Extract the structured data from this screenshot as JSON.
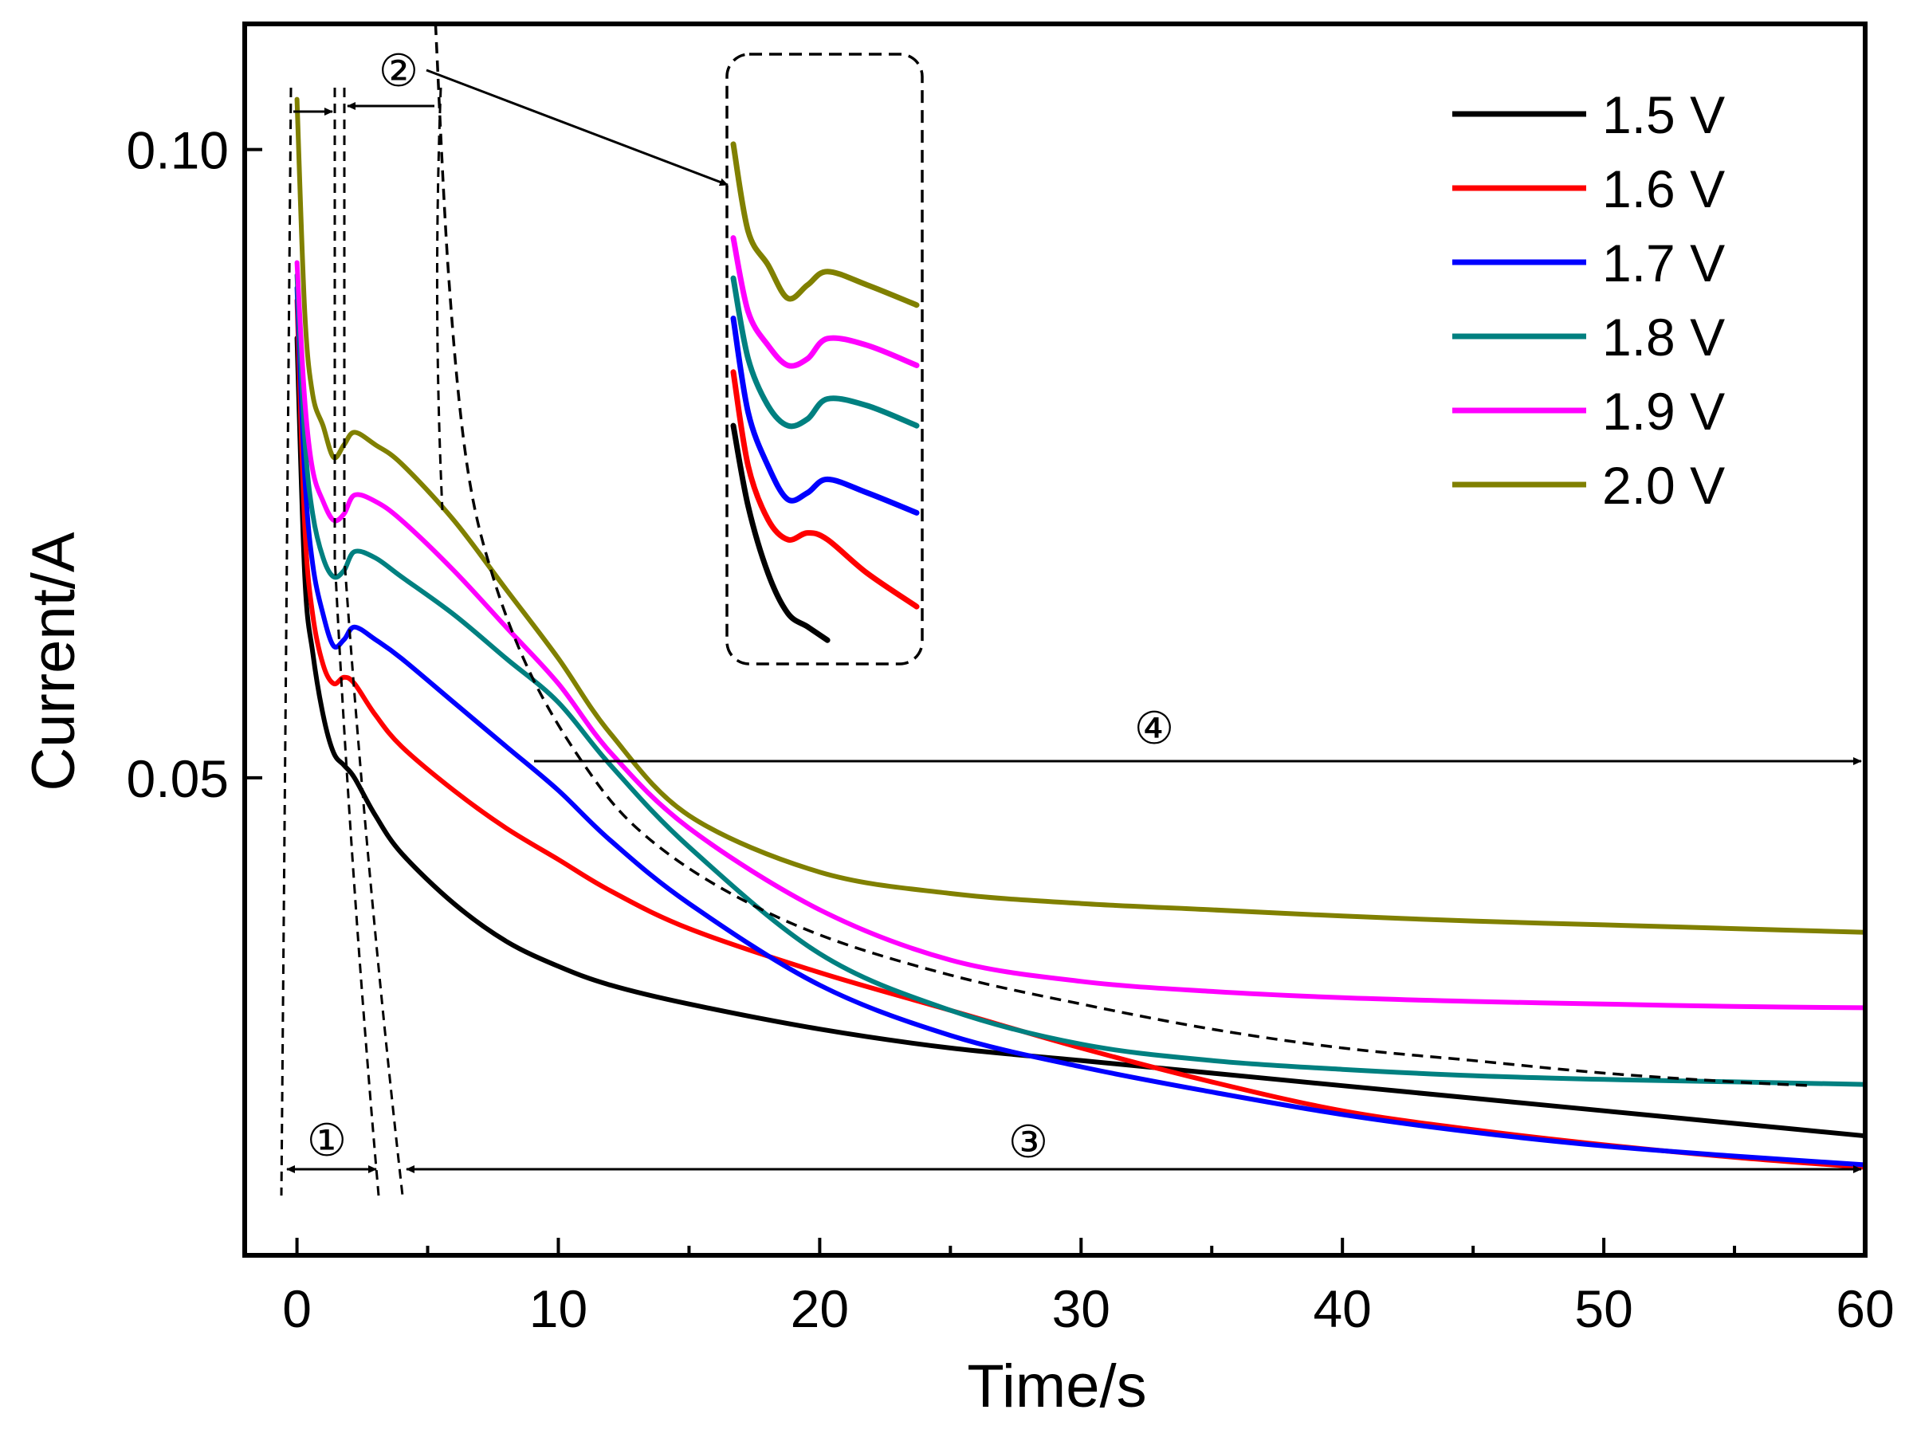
{
  "chart_data": {
    "type": "line",
    "title": "",
    "xlabel": "Time/s",
    "ylabel": "Current/A",
    "xlim": [
      -2,
      60
    ],
    "ylim": [
      0.012,
      0.11
    ],
    "xticks": [
      0,
      10,
      20,
      30,
      40,
      50,
      60
    ],
    "xtick_labels": [
      "0",
      "10",
      "20",
      "30",
      "40",
      "50",
      "60"
    ],
    "yticks": [
      0.05,
      0.1
    ],
    "ytick_labels": [
      "0.05",
      "0.10"
    ],
    "grid": false,
    "legend_position": "top-right",
    "series": [
      {
        "name": "1.5 V",
        "color": "#000000",
        "x": [
          0,
          0.3,
          0.6,
          1.0,
          1.4,
          1.8,
          2.2,
          3,
          4,
          6,
          8,
          10,
          12,
          15,
          20,
          25,
          30,
          35,
          40,
          45,
          50,
          55,
          60
        ],
        "y": [
          0.085,
          0.066,
          0.06,
          0.055,
          0.052,
          0.051,
          0.05,
          0.047,
          0.044,
          0.04,
          0.037,
          0.035,
          0.0335,
          0.032,
          0.03,
          0.0285,
          0.0275,
          0.0265,
          0.0255,
          0.0245,
          0.0235,
          0.0225,
          0.0215
        ]
      },
      {
        "name": "1.6 V",
        "color": "#ff0000",
        "x": [
          0,
          0.3,
          0.6,
          1.0,
          1.4,
          1.8,
          2.2,
          3,
          4,
          6,
          8,
          10,
          12,
          15,
          20,
          25,
          30,
          35,
          40,
          45,
          50,
          55,
          60
        ],
        "y": [
          0.088,
          0.07,
          0.063,
          0.059,
          0.0575,
          0.058,
          0.0575,
          0.055,
          0.0525,
          0.049,
          0.046,
          0.0435,
          0.041,
          0.038,
          0.0345,
          0.0315,
          0.0285,
          0.0258,
          0.0235,
          0.022,
          0.0208,
          0.0198,
          0.019
        ]
      },
      {
        "name": "1.7 V",
        "color": "#0000ff",
        "x": [
          0,
          0.3,
          0.6,
          1.0,
          1.4,
          1.8,
          2.2,
          3,
          4,
          6,
          8,
          10,
          12,
          15,
          20,
          25,
          30,
          35,
          40,
          45,
          50,
          55,
          60
        ],
        "y": [
          0.089,
          0.074,
          0.067,
          0.063,
          0.0605,
          0.061,
          0.062,
          0.061,
          0.0595,
          0.056,
          0.0525,
          0.049,
          0.045,
          0.04,
          0.0335,
          0.0295,
          0.027,
          0.025,
          0.0232,
          0.0218,
          0.0207,
          0.0199,
          0.0192
        ]
      },
      {
        "name": "1.8 V",
        "color": "#008080",
        "x": [
          0,
          0.3,
          0.6,
          1.0,
          1.4,
          1.8,
          2.2,
          3,
          4,
          6,
          8,
          10,
          12,
          15,
          20,
          25,
          30,
          35,
          40,
          45,
          50,
          55,
          60
        ],
        "y": [
          0.09,
          0.077,
          0.071,
          0.0675,
          0.066,
          0.0665,
          0.068,
          0.0675,
          0.066,
          0.063,
          0.0595,
          0.056,
          0.051,
          0.0445,
          0.036,
          0.0315,
          0.0288,
          0.0275,
          0.0268,
          0.0263,
          0.026,
          0.0258,
          0.0256
        ]
      },
      {
        "name": "1.9 V",
        "color": "#ff00ff",
        "x": [
          0,
          0.3,
          0.6,
          1.0,
          1.4,
          1.8,
          2.2,
          3,
          4,
          6,
          8,
          10,
          12,
          15,
          20,
          25,
          30,
          35,
          40,
          45,
          50,
          55,
          60
        ],
        "y": [
          0.091,
          0.08,
          0.0745,
          0.072,
          0.0705,
          0.071,
          0.0725,
          0.072,
          0.0705,
          0.0665,
          0.062,
          0.0575,
          0.052,
          0.046,
          0.0395,
          0.0355,
          0.0338,
          0.033,
          0.0325,
          0.0322,
          0.032,
          0.0318,
          0.0317
        ]
      },
      {
        "name": "2.0 V",
        "color": "#808000",
        "x": [
          0,
          0.3,
          0.6,
          1.0,
          1.4,
          1.8,
          2.2,
          3,
          4,
          6,
          8,
          10,
          12,
          15,
          20,
          25,
          30,
          35,
          40,
          45,
          50,
          55,
          60
        ],
        "y": [
          0.104,
          0.087,
          0.0805,
          0.078,
          0.0755,
          0.0765,
          0.0775,
          0.0765,
          0.075,
          0.0705,
          0.065,
          0.0595,
          0.0535,
          0.047,
          0.0425,
          0.0408,
          0.04,
          0.0395,
          0.039,
          0.0386,
          0.0383,
          0.038,
          0.0377
        ]
      }
    ],
    "fit_curve": {
      "style": "dashed",
      "color": "#000000",
      "x": [
        5.3,
        5.8,
        6.5,
        7.5,
        9,
        11,
        13,
        16,
        20,
        25,
        30,
        35,
        40,
        45,
        50,
        55,
        58
      ],
      "y": [
        0.11,
        0.09,
        0.075,
        0.066,
        0.058,
        0.051,
        0.046,
        0.0415,
        0.0375,
        0.0343,
        0.032,
        0.03,
        0.0285,
        0.0275,
        0.0265,
        0.0258,
        0.0255
      ]
    },
    "annotations": [
      {
        "label": "①",
        "from": 0,
        "to": 3.0
      },
      {
        "label": "②",
        "from": 1.5,
        "to": 5.3
      },
      {
        "label": "③",
        "from": 4.0,
        "to": 60
      },
      {
        "label": "④",
        "from": 9.0,
        "to": 60
      }
    ]
  }
}
